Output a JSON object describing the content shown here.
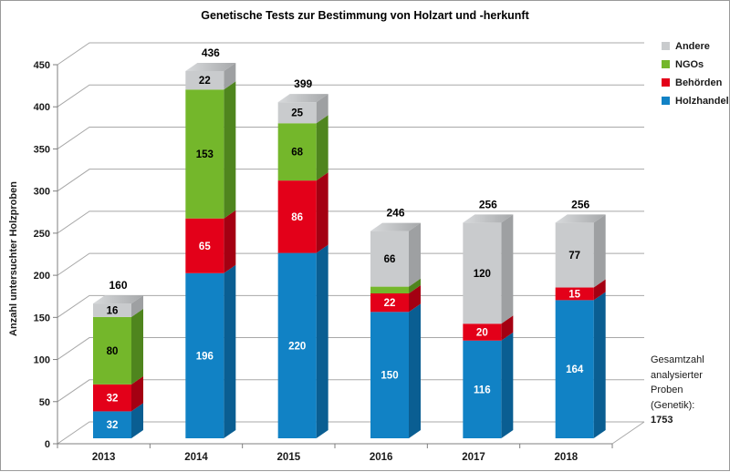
{
  "page": {
    "title": "Genetische Tests zur Bestimmung von Holzart und -herkunft"
  },
  "chart_data": {
    "type": "bar",
    "variant": "3d-stacked-column",
    "title": "Genetische Tests zur Bestimmung von Holzart und -herkunft",
    "xlabel": "",
    "ylabel": "Anzahl untersuchter Holzproben",
    "ylim": [
      0,
      450
    ],
    "y_ticks": [
      0,
      50,
      100,
      150,
      200,
      250,
      300,
      350,
      400,
      450
    ],
    "grid": true,
    "legend_position": "top-right",
    "categories": [
      "2013",
      "2014",
      "2015",
      "2016",
      "2017",
      "2018"
    ],
    "series": [
      {
        "name": "Holzhandel",
        "values": [
          32,
          196,
          220,
          150,
          116,
          164
        ],
        "color": "#1182C5",
        "side_color": "#0A5E92",
        "label_color": "#ffffff"
      },
      {
        "name": "Behörden",
        "values": [
          32,
          65,
          86,
          22,
          20,
          15
        ],
        "color": "#E30019",
        "side_color": "#A40012",
        "label_color": "#ffffff"
      },
      {
        "name": "NGOs",
        "values": [
          80,
          153,
          68,
          8,
          0,
          0
        ],
        "color": "#74B72B",
        "side_color": "#4F851E",
        "label_color": "#000000"
      },
      {
        "name": "Andere",
        "values": [
          16,
          22,
          25,
          66,
          120,
          77
        ],
        "color": "#C9CBCD",
        "side_color": "#9EA0A2",
        "top_gradient": [
          "#D8DADC",
          "#A6A8AA"
        ],
        "label_color": "#000000"
      }
    ],
    "totals": [
      160,
      436,
      399,
      246,
      256,
      256
    ],
    "note": {
      "text_lines": [
        "Gesamtzahl",
        "analysierter",
        "Proben",
        "(Genetik):"
      ],
      "value": "1753"
    },
    "colors": {
      "gridline": "#A8A8A8",
      "axis": "#7F7F7F",
      "background": "#ffffff",
      "text": "#1a1a1a"
    }
  }
}
